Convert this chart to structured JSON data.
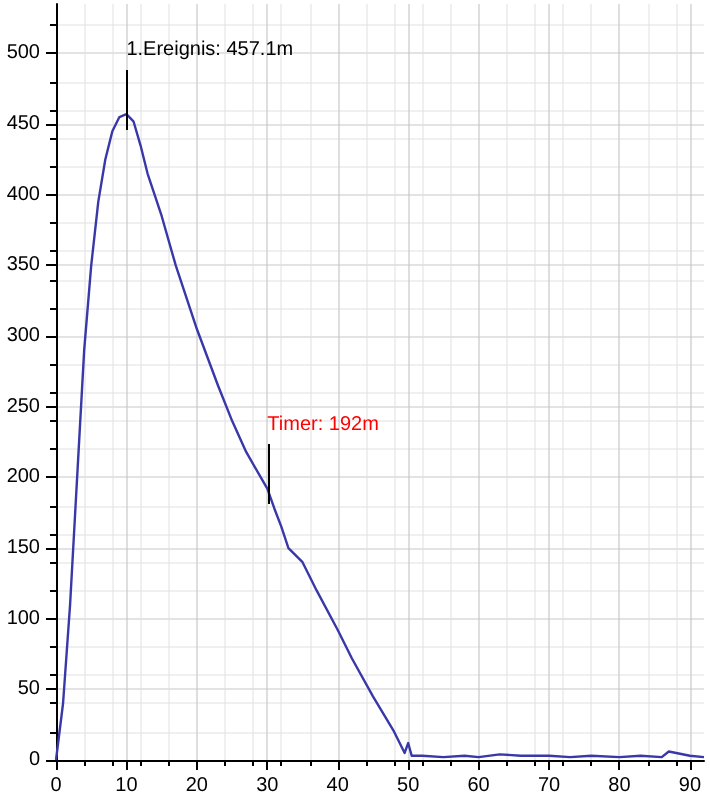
{
  "chart_data": {
    "type": "line",
    "line_style": "solid",
    "marker": "none",
    "grid": true,
    "xlim": [
      0,
      92
    ],
    "xticks": [
      0,
      10,
      20,
      30,
      40,
      50,
      60,
      70,
      80,
      90
    ],
    "ylim": [
      0,
      535
    ],
    "yticks": [
      0,
      50,
      100,
      150,
      200,
      250,
      300,
      350,
      400,
      450,
      500
    ],
    "series": [
      {
        "color": "#3838a8",
        "x": [
          0,
          1,
          2,
          3,
          4,
          5,
          6,
          7,
          8,
          9,
          10,
          11,
          12,
          13,
          15,
          17,
          20,
          23,
          25,
          27,
          30,
          31,
          32,
          33,
          35,
          37,
          40,
          42,
          45,
          48,
          49.5,
          50,
          50.5,
          52,
          55,
          58,
          60,
          63,
          66,
          70,
          73,
          76,
          80,
          83,
          86,
          87,
          90,
          92
        ],
        "values": [
          0,
          40,
          110,
          200,
          290,
          350,
          395,
          425,
          445,
          455,
          457,
          452,
          435,
          415,
          385,
          350,
          305,
          265,
          240,
          218,
          192,
          178,
          165,
          150,
          140,
          120,
          92,
          72,
          45,
          20,
          5,
          12,
          3,
          3,
          2,
          3,
          2,
          4,
          3,
          3,
          2,
          3,
          2,
          3,
          2,
          6,
          3,
          2
        ]
      }
    ],
    "annotations": [
      {
        "text": "1.Ereignis: 457.1m",
        "x": 10,
        "y": 457
      },
      {
        "text": "Timer: 192m",
        "x": 30,
        "y": 192
      }
    ]
  }
}
